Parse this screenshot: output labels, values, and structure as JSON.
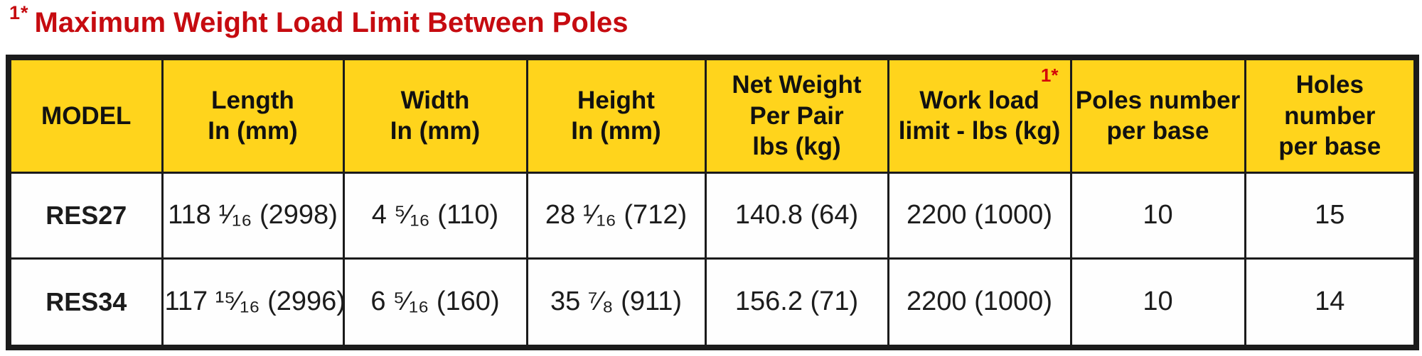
{
  "title": {
    "sup": "1*",
    "text": "Maximum Weight Load Limit Between Poles"
  },
  "colors": {
    "title_red": "#c60b10",
    "footnote_red": "#d40308",
    "header_bg_yellow": "#ffd41c",
    "border_black": "#1b1b1b",
    "row_bg": "#fefefe"
  },
  "table": {
    "headers": [
      {
        "label": "MODEL"
      },
      {
        "label": "Length\nIn (mm)"
      },
      {
        "label": "Width\nIn (mm)"
      },
      {
        "label": "Height\nIn (mm)"
      },
      {
        "label": "Net Weight\nPer Pair\nlbs (kg)"
      },
      {
        "label": "Work load\nlimit - lbs (kg)",
        "sup": "1*"
      },
      {
        "label": "Poles number\nper base"
      },
      {
        "label": "Holes number\nper base"
      }
    ],
    "rows": [
      {
        "model": "RES27",
        "length": "118 ¹⁄₁₆ (2998)",
        "width": "4 ⁵⁄₁₆ (110)",
        "height": "28 ¹⁄₁₆ (712)",
        "net_weight": "140.8 (64)",
        "work_load": "2200 (1000)",
        "poles": "10",
        "holes": "15"
      },
      {
        "model": "RES34",
        "length": "117 ¹⁵⁄₁₆ (2996)",
        "width": "6 ⁵⁄₁₆ (160)",
        "height": "35 ⁷⁄₈ (911)",
        "net_weight": "156.2 (71)",
        "work_load": "2200 (1000)",
        "poles": "10",
        "holes": "14"
      }
    ]
  }
}
